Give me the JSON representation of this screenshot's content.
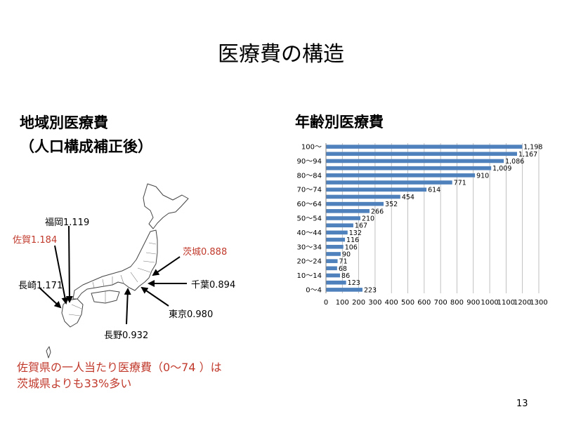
{
  "slide": {
    "title": "医療費の構造",
    "page_number": "13"
  },
  "left": {
    "heading_line1": "地域別医療費",
    "heading_line2": "（人口構成補正後）",
    "labels": {
      "fukuoka": "福岡1.119",
      "saga": "佐賀1.184",
      "nagasaki": "長崎1.171",
      "ibaraki": "茨城0.888",
      "chiba": "千葉0.894",
      "tokyo": "東京0.980",
      "nagano": "長野0.932"
    },
    "note_line1": "佐賀県の一人当たり医療費（0～74 ）は",
    "note_line2": "茨城県よりも33%多い",
    "colors": {
      "highlight": "#c0392b"
    }
  },
  "right": {
    "heading": "年齢別医療費"
  },
  "chart_data": {
    "type": "bar",
    "orientation": "horizontal",
    "categories": [
      "0～4",
      "5～9",
      "10～14",
      "15～19",
      "20～24",
      "25～29",
      "30～34",
      "35～39",
      "40～44",
      "45～49",
      "50～54",
      "55～59",
      "60～64",
      "65～69",
      "70～74",
      "75～79",
      "80～84",
      "85～89",
      "90～94",
      "95～99",
      "100～"
    ],
    "category_tick_labels": [
      "0～4",
      "10～14",
      "20～24",
      "30～34",
      "40～44",
      "50～54",
      "60～64",
      "70～74",
      "80～84",
      "90～94",
      "100～"
    ],
    "values": [
      223,
      123,
      86,
      68,
      71,
      90,
      106,
      116,
      132,
      167,
      210,
      266,
      352,
      454,
      614,
      771,
      910,
      1009,
      1086,
      1167,
      1198
    ],
    "data_labels": [
      "223",
      "123",
      "86",
      "68",
      "71",
      "90",
      "106",
      "116",
      "132",
      "167",
      "210",
      "266",
      "352",
      "454",
      "614",
      "771",
      "910",
      "1,009",
      "1,086",
      "1,167",
      "1,198"
    ],
    "x_ticks": [
      "0",
      "100",
      "200",
      "300",
      "400",
      "500",
      "600",
      "700",
      "800",
      "900",
      "1000",
      "1100",
      "1200",
      "1300"
    ],
    "xlim": [
      0,
      1300
    ],
    "grid": "vertical",
    "bar_color": "#4f81bd",
    "title": ""
  }
}
